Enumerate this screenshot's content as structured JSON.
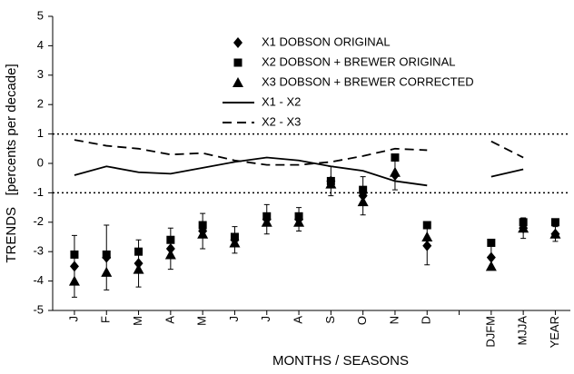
{
  "chart_data": {
    "type": "scatter",
    "xlabel": "MONTHS / SEASONS",
    "ylabel": "TRENDS   [percents per decade]",
    "categories": [
      "J",
      "F",
      "M",
      "A",
      "M",
      "J",
      "J",
      "A",
      "S",
      "O",
      "N",
      "D",
      null,
      "DJFM",
      "MJJA",
      "YEAR"
    ],
    "ylim": [
      -5,
      5
    ],
    "yticks": [
      -5,
      -4,
      -3,
      -2,
      -1,
      0,
      1,
      2,
      3,
      4,
      5
    ],
    "reference_lines": [
      1,
      -1
    ],
    "series": [
      {
        "name": "X1 DOBSON ORIGINAL",
        "color": "#000000",
        "marker": "diamond",
        "values": [
          -3.5,
          -3.2,
          -3.4,
          -2.9,
          -2.3,
          -2.6,
          -1.9,
          -1.9,
          -0.6,
          -1.1,
          -0.4,
          -2.8,
          null,
          -3.2,
          -2.2,
          -2.4
        ],
        "errors": [
          1.05,
          1.1,
          0.8,
          0.7,
          0.6,
          0.45,
          0.5,
          0.4,
          0.5,
          0.65,
          0.5,
          0.65,
          null,
          0.4,
          0.35,
          0.25
        ]
      },
      {
        "name": "X2 DOBSON + BREWER ORIGINAL",
        "color": "#000000",
        "marker": "square",
        "values": [
          -3.1,
          -3.1,
          -3.0,
          -2.6,
          -2.1,
          -2.5,
          -1.8,
          -1.8,
          -0.6,
          -0.9,
          0.2,
          -2.1,
          null,
          -2.7,
          -2.0,
          -2.0
        ]
      },
      {
        "name": "X3 DOBSON + BREWER CORRECTED",
        "color": "#000000",
        "marker": "triangle",
        "values": [
          -4.0,
          -3.7,
          -3.6,
          -3.1,
          -2.4,
          -2.7,
          -2.0,
          -2.0,
          -0.7,
          -1.3,
          -0.3,
          -2.5,
          null,
          -3.5,
          -2.2,
          -2.4
        ]
      },
      {
        "name": "X1 - X2",
        "color": "#000000",
        "line": "solid",
        "values": [
          -0.4,
          -0.1,
          -0.3,
          -0.35,
          -0.15,
          0.05,
          0.2,
          0.1,
          -0.1,
          -0.25,
          -0.6,
          -0.75,
          null,
          -0.45,
          -0.2,
          null
        ]
      },
      {
        "name": "X2 - X3",
        "color": "#000000",
        "line": "dashed",
        "values": [
          0.8,
          0.6,
          0.5,
          0.3,
          0.35,
          0.1,
          -0.05,
          -0.05,
          0.05,
          0.25,
          0.5,
          0.45,
          null,
          0.75,
          0.2,
          null
        ]
      }
    ]
  }
}
